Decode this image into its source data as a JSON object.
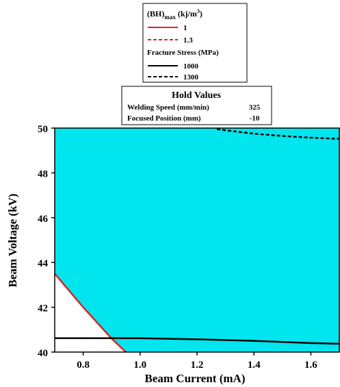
{
  "legend": {
    "bh_title_main": "(BH)",
    "bh_title_sub": "max",
    "bh_title_unit": " (kj/m",
    "bh_title_sup": "3",
    "bh_title_close": ")",
    "bh_items": [
      {
        "label": "1",
        "color": "#e02020",
        "style": "solid"
      },
      {
        "label": "1.3",
        "color": "#e02020",
        "style": "dashed"
      }
    ],
    "fs_title": "Fracture Stress (MPa)",
    "fs_items": [
      {
        "label": "1000",
        "color": "#000000",
        "style": "solid"
      },
      {
        "label": "1300",
        "color": "#000000",
        "style": "dashed"
      }
    ]
  },
  "hold": {
    "title": "Hold Values",
    "rows": [
      {
        "label": "Welding Speed (mm/min)",
        "value": "325"
      },
      {
        "label": "Focused Position (mm)",
        "value": "-10"
      }
    ]
  },
  "colors": {
    "feasible_region": "#00e5ee",
    "infeasible_region": "#ffffff"
  },
  "chart_data": {
    "type": "line",
    "xlabel": "Beam Current (mA)",
    "ylabel": "Beam Voltage (kV)",
    "xlim": [
      0.7,
      1.7
    ],
    "ylim": [
      40,
      50
    ],
    "xticks": [
      "0.8",
      "1.0",
      "1.2",
      "1.4",
      "1.6"
    ],
    "yticks": [
      "40",
      "42",
      "44",
      "46",
      "48",
      "50"
    ],
    "grid": false,
    "series": [
      {
        "name": "1",
        "group": "(BH)max",
        "color": "#e02020",
        "dash": false,
        "x": [
          0.7,
          0.8,
          0.9,
          0.95
        ],
        "y": [
          43.5,
          42.0,
          40.6,
          40.0
        ]
      },
      {
        "name": "1000",
        "group": "Fracture Stress",
        "color": "#000000",
        "dash": false,
        "x": [
          0.7,
          1.0,
          1.2,
          1.4,
          1.6,
          1.7
        ],
        "y": [
          40.62,
          40.62,
          40.57,
          40.5,
          40.4,
          40.37
        ]
      },
      {
        "name": "1300",
        "group": "Fracture Stress",
        "color": "#000000",
        "dash": true,
        "x": [
          1.27,
          1.4,
          1.5,
          1.6,
          1.7
        ],
        "y": [
          49.95,
          49.75,
          49.65,
          49.57,
          49.52
        ]
      }
    ]
  }
}
